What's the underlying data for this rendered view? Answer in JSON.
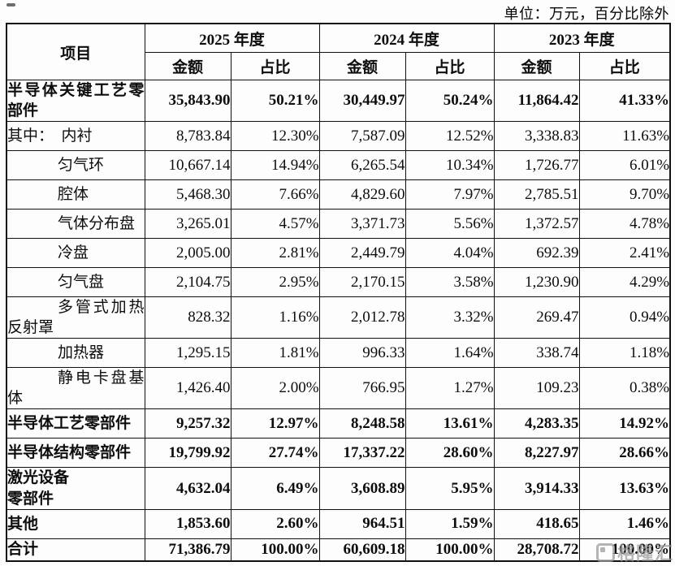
{
  "unit_note": "单位：万元，百分比除外",
  "watermark": {
    "text": "格隆汇"
  },
  "table": {
    "item_header": "项目",
    "years": [
      "2025 年度",
      "2024 年度",
      "2023 年度"
    ],
    "sub_headers": {
      "amount": "金额",
      "ratio": "占比"
    },
    "rows": [
      {
        "label": "半导体关键工艺零部件",
        "bold": true,
        "indent": false,
        "values": [
          "35,843.90",
          "50.21%",
          "30,449.97",
          "50.24%",
          "11,864.42",
          "41.33%"
        ]
      },
      {
        "label": "其中：　内衬",
        "bold": false,
        "indent": false,
        "values": [
          "8,783.84",
          "12.30%",
          "7,587.09",
          "12.52%",
          "3,338.83",
          "11.63%"
        ]
      },
      {
        "label": "匀气环",
        "bold": false,
        "indent": true,
        "values": [
          "10,667.14",
          "14.94%",
          "6,265.54",
          "10.34%",
          "1,726.77",
          "6.01%"
        ]
      },
      {
        "label": "腔体",
        "bold": false,
        "indent": true,
        "values": [
          "5,468.30",
          "7.66%",
          "4,829.60",
          "7.97%",
          "2,785.51",
          "9.70%"
        ]
      },
      {
        "label": "气体分布盘",
        "bold": false,
        "indent": true,
        "values": [
          "3,265.01",
          "4.57%",
          "3,371.73",
          "5.56%",
          "1,372.57",
          "4.78%"
        ]
      },
      {
        "label": "冷盘",
        "bold": false,
        "indent": true,
        "values": [
          "2,005.00",
          "2.81%",
          "2,449.79",
          "4.04%",
          "692.39",
          "2.41%"
        ]
      },
      {
        "label": "匀气盘",
        "bold": false,
        "indent": true,
        "values": [
          "2,104.75",
          "2.95%",
          "2,170.15",
          "3.58%",
          "1,230.90",
          "4.29%"
        ]
      },
      {
        "label": "多管式加热反射罩",
        "bold": false,
        "indent": true,
        "values": [
          "828.32",
          "1.16%",
          "2,012.78",
          "3.32%",
          "269.47",
          "0.94%"
        ]
      },
      {
        "label": "加热器",
        "bold": false,
        "indent": true,
        "values": [
          "1,295.15",
          "1.81%",
          "996.33",
          "1.64%",
          "338.74",
          "1.18%"
        ]
      },
      {
        "label": "静电卡盘基体",
        "bold": false,
        "indent": true,
        "values": [
          "1,426.40",
          "2.00%",
          "766.95",
          "1.27%",
          "109.23",
          "0.38%"
        ]
      },
      {
        "label": "半导体工艺零部件",
        "bold": true,
        "indent": false,
        "values": [
          "9,257.32",
          "12.97%",
          "8,248.58",
          "13.61%",
          "4,283.35",
          "14.92%"
        ]
      },
      {
        "label": "半导体结构零部件",
        "bold": true,
        "indent": false,
        "values": [
          "19,799.92",
          "27.74%",
          "17,337.22",
          "28.60%",
          "8,227.97",
          "28.66%"
        ]
      },
      {
        "label": "激光设备\n零部件",
        "bold": true,
        "indent": false,
        "values": [
          "4,632.04",
          "6.49%",
          "3,608.89",
          "5.95%",
          "3,914.33",
          "13.63%"
        ]
      },
      {
        "label": "其他",
        "bold": true,
        "indent": false,
        "values": [
          "1,853.60",
          "2.60%",
          "964.51",
          "1.59%",
          "418.65",
          "1.46%"
        ]
      },
      {
        "label": "合计",
        "bold": true,
        "indent": false,
        "values": [
          "71,386.79",
          "100.00%",
          "60,609.18",
          "100.00%",
          "28,708.72",
          "100.00%"
        ]
      }
    ]
  }
}
